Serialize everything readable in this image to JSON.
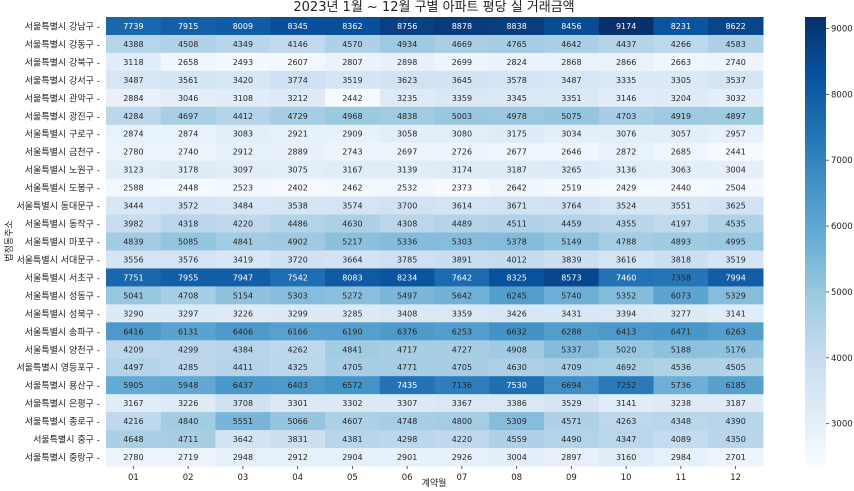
{
  "chart_data": {
    "type": "heatmap",
    "title": "2023년 1월 ~ 12월 구별 아파트 평당 실 거래금액",
    "xlabel": "계약월",
    "ylabel": "법정동주소",
    "colormap": "Blues",
    "colorbar_ticks": [
      3000,
      4000,
      5000,
      6000,
      7000,
      8000,
      9000
    ],
    "colorbar_range": [
      2373,
      9174
    ],
    "columns": [
      "01",
      "02",
      "03",
      "04",
      "05",
      "06",
      "07",
      "08",
      "09",
      "10",
      "11",
      "12"
    ],
    "rows": [
      {
        "label": "서울특별시 강남구",
        "values": [
          7739,
          7915,
          8009,
          8345,
          8362,
          8756,
          8878,
          8838,
          8456,
          9174,
          8231,
          8622
        ]
      },
      {
        "label": "서울특별시 강동구",
        "values": [
          4388,
          4508,
          4349,
          4146,
          4570,
          4934,
          4669,
          4765,
          4642,
          4437,
          4266,
          4583
        ]
      },
      {
        "label": "서울특별시 강북구",
        "values": [
          3118,
          2658,
          2493,
          2607,
          2807,
          2898,
          2699,
          2824,
          2868,
          2866,
          2663,
          2740
        ]
      },
      {
        "label": "서울특별시 강서구",
        "values": [
          3487,
          3561,
          3420,
          3774,
          3519,
          3623,
          3645,
          3578,
          3487,
          3335,
          3305,
          3537
        ]
      },
      {
        "label": "서울특별시 관악구",
        "values": [
          2884,
          3046,
          3108,
          3212,
          2442,
          3235,
          3359,
          3345,
          3351,
          3146,
          3204,
          3032
        ]
      },
      {
        "label": "서울특별시 광진구",
        "values": [
          4284,
          4697,
          4412,
          4729,
          4968,
          4838,
          5003,
          4978,
          5075,
          4703,
          4919,
          4897
        ]
      },
      {
        "label": "서울특별시 구로구",
        "values": [
          2874,
          2874,
          3083,
          2921,
          2909,
          3058,
          3080,
          3175,
          3034,
          3076,
          3057,
          2957
        ]
      },
      {
        "label": "서울특별시 금천구",
        "values": [
          2780,
          2740,
          2912,
          2889,
          2743,
          2697,
          2726,
          2677,
          2646,
          2872,
          2685,
          2441
        ]
      },
      {
        "label": "서울특별시 노원구",
        "values": [
          3123,
          3178,
          3097,
          3075,
          3167,
          3139,
          3174,
          3187,
          3265,
          3136,
          3063,
          3004
        ]
      },
      {
        "label": "서울특별시 도봉구",
        "values": [
          2588,
          2448,
          2523,
          2402,
          2462,
          2532,
          2373,
          2642,
          2519,
          2429,
          2440,
          2504
        ]
      },
      {
        "label": "서울특별시 동대문구",
        "values": [
          3444,
          3572,
          3484,
          3538,
          3574,
          3700,
          3614,
          3671,
          3764,
          3524,
          3551,
          3625
        ]
      },
      {
        "label": "서울특별시 동작구",
        "values": [
          3982,
          4318,
          4220,
          4486,
          4630,
          4308,
          4489,
          4511,
          4459,
          4355,
          4197,
          4535
        ]
      },
      {
        "label": "서울특별시 마포구",
        "values": [
          4839,
          5085,
          4841,
          4902,
          5217,
          5336,
          5303,
          5378,
          5149,
          4788,
          4893,
          4995
        ]
      },
      {
        "label": "서울특별시 서대문구",
        "values": [
          3556,
          3576,
          3419,
          3720,
          3664,
          3785,
          3891,
          4012,
          3839,
          3616,
          3818,
          3519
        ]
      },
      {
        "label": "서울특별시 서초구",
        "values": [
          7751,
          7955,
          7947,
          7542,
          8083,
          8234,
          7642,
          8325,
          8573,
          7460,
          7358,
          7994
        ]
      },
      {
        "label": "서울특별시 성동구",
        "values": [
          5041,
          4708,
          5154,
          5303,
          5272,
          5497,
          5642,
          6245,
          5740,
          5352,
          6073,
          5329
        ]
      },
      {
        "label": "서울특별시 성북구",
        "values": [
          3290,
          3297,
          3226,
          3299,
          3285,
          3408,
          3359,
          3426,
          3431,
          3394,
          3277,
          3141
        ]
      },
      {
        "label": "서울특별시 송파구",
        "values": [
          6416,
          6131,
          6406,
          6166,
          6190,
          6376,
          6253,
          6632,
          6288,
          6413,
          6471,
          6263
        ]
      },
      {
        "label": "서울특별시 양천구",
        "values": [
          4209,
          4299,
          4384,
          4262,
          4841,
          4717,
          4727,
          4908,
          5337,
          5020,
          5188,
          5176
        ]
      },
      {
        "label": "서울특별시 영등포구",
        "values": [
          4497,
          4285,
          4411,
          4325,
          4705,
          4771,
          4705,
          4630,
          4709,
          4692,
          4536,
          4505
        ]
      },
      {
        "label": "서울특별시 용산구",
        "values": [
          5905,
          5948,
          6437,
          6403,
          6572,
          7435,
          7136,
          7530,
          6694,
          7252,
          5736,
          6185
        ]
      },
      {
        "label": "서울특별시 은평구",
        "values": [
          3167,
          3226,
          3708,
          3301,
          3302,
          3307,
          3367,
          3386,
          3529,
          3141,
          3238,
          3187
        ]
      },
      {
        "label": "서울특별시 종로구",
        "values": [
          4216,
          4840,
          5551,
          5066,
          4607,
          4748,
          4800,
          5309,
          4571,
          4263,
          4348,
          4390
        ]
      },
      {
        "label": "서울특별시 중구",
        "values": [
          4648,
          4711,
          3642,
          3831,
          4381,
          4298,
          4220,
          4559,
          4490,
          4347,
          4089,
          4350
        ]
      },
      {
        "label": "서울특별시 중랑구",
        "values": [
          2780,
          2719,
          2948,
          2912,
          2904,
          2901,
          2926,
          3004,
          2897,
          3160,
          2984,
          2701
        ]
      }
    ]
  }
}
